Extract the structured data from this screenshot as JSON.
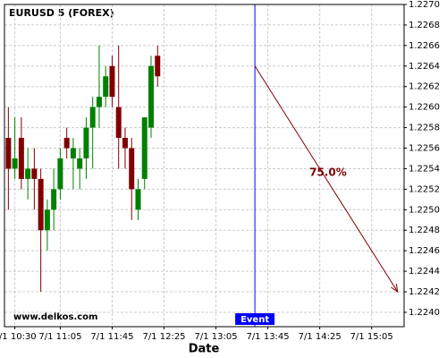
{
  "chart_data": {
    "type": "candlestick",
    "title": "EURUSD 5 (FOREX)",
    "xlabel": "Date",
    "watermark": "www.delkos.com",
    "up_color": "#008000",
    "down_color": "#800000",
    "grid": true,
    "xlim": [
      "7/1 10:22",
      "7/1 15:30"
    ],
    "xticks": [
      "7/1 10:30",
      "7/1 11:05",
      "7/1 11:45",
      "7/1 12:25",
      "7/1 13:05",
      "7/1 13:45",
      "7/1 14:25",
      "7/1 15:05"
    ],
    "ylim": [
      1.22386,
      1.227
    ],
    "yticks": [
      {
        "value": 1.224,
        "label": "1.2240"
      },
      1.2242,
      1.2244,
      1.2246,
      1.2248,
      {
        "value": 1.225,
        "label": "1.2250"
      },
      1.2252,
      1.2254,
      1.2256,
      1.2258,
      {
        "value": 1.226,
        "label": "1.2260"
      },
      1.2262,
      1.2264,
      1.2266,
      1.2268,
      {
        "value": 1.227,
        "label": "1.2270"
      }
    ],
    "x": [
      "7/1 10:25",
      "7/1 10:30",
      "7/1 10:35",
      "7/1 10:40",
      "7/1 10:45",
      "7/1 10:50",
      "7/1 10:55",
      "7/1 11:00",
      "7/1 11:05",
      "7/1 11:10",
      "7/1 11:15",
      "7/1 11:20",
      "7/1 11:25",
      "7/1 11:30",
      "7/1 11:35",
      "7/1 11:40",
      "7/1 11:45",
      "7/1 11:50",
      "7/1 11:55",
      "7/1 12:00",
      "7/1 12:05",
      "7/1 12:10",
      "7/1 12:15",
      "7/1 12:20"
    ],
    "open": [
      1.2257,
      1.2254,
      1.2257,
      1.2253,
      1.2254,
      1.2253,
      1.2248,
      1.225,
      1.2252,
      1.2257,
      1.2255,
      1.2254,
      1.2255,
      1.2258,
      1.226,
      1.2261,
      1.2264,
      1.226,
      1.2257,
      1.2256,
      1.225,
      1.2253,
      1.2258,
      1.2265
    ],
    "high": [
      1.226,
      1.2259,
      1.2259,
      1.2256,
      1.2256,
      1.2254,
      1.2251,
      1.2254,
      1.2256,
      1.2258,
      1.2257,
      1.2256,
      1.2259,
      1.2261,
      1.2266,
      1.2264,
      1.2265,
      1.2266,
      1.2258,
      1.2257,
      1.2253,
      1.2259,
      1.2265,
      1.2266
    ],
    "low": [
      1.225,
      1.2253,
      1.2252,
      1.2251,
      1.225,
      1.2242,
      1.2246,
      1.2248,
      1.2251,
      1.2255,
      1.2252,
      1.2252,
      1.2253,
      1.2254,
      1.2258,
      1.226,
      1.226,
      1.2254,
      1.2254,
      1.2249,
      1.2249,
      1.2252,
      1.2257,
      1.2262
    ],
    "close": [
      1.2254,
      1.2255,
      1.2253,
      1.2254,
      1.2253,
      1.2248,
      1.225,
      1.2252,
      1.2255,
      1.2256,
      1.2256,
      1.2255,
      1.2258,
      1.226,
      1.2261,
      1.2263,
      1.2261,
      1.2257,
      1.2256,
      1.2252,
      1.2252,
      1.2259,
      1.2264,
      1.2263
    ],
    "event": {
      "label": "Event",
      "x": "7/1 13:35",
      "color": "#0000ff"
    },
    "projection": {
      "label": "75.0%",
      "color": "#800000",
      "from": {
        "x": "7/1 13:35",
        "y": 1.2264
      },
      "to": {
        "x": "7/1 15:25",
        "y": 1.2242
      }
    }
  }
}
